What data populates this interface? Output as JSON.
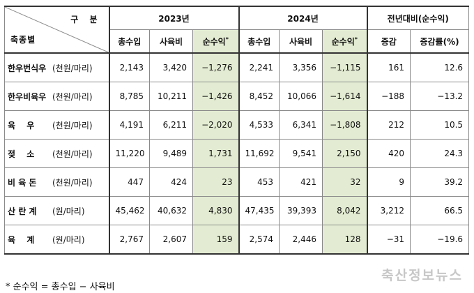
{
  "header": {
    "corner_top": "구 분",
    "corner_bottom": "축종별",
    "year1": "2023년",
    "year2": "2024년",
    "yoy": "전년대비(순수익)",
    "col_income": "총수입",
    "col_cost": "사육비",
    "col_net": "순수익",
    "col_net_mark": "*",
    "col_change": "증감",
    "col_rate": "증감률(%)"
  },
  "rows": [
    {
      "name": "한우번식우",
      "unit": "(천원/마리)",
      "i23": "2,143",
      "c23": "3,420",
      "n23": "−1,276",
      "i24": "2,241",
      "c24": "3,356",
      "n24": "−1,115",
      "chg": "161",
      "rate": "12.6"
    },
    {
      "name": "한우비육우",
      "unit": "(천원/마리)",
      "i23": "8,785",
      "c23": "10,211",
      "n23": "−1,426",
      "i24": "8,452",
      "c24": "10,066",
      "n24": "−1,614",
      "chg": "−188",
      "rate": "−13.2"
    },
    {
      "name": "육　 우",
      "unit": "(천원/마리)",
      "i23": "4,191",
      "c23": "6,211",
      "n23": "−2,020",
      "i24": "4,533",
      "c24": "6,341",
      "n24": "−1,808",
      "chg": "212",
      "rate": "10.5"
    },
    {
      "name": "젖　 소",
      "unit": "(천원/마리)",
      "i23": "11,220",
      "c23": "9,489",
      "n23": "1,731",
      "i24": "11,692",
      "c24": "9,541",
      "n24": "2,150",
      "chg": "420",
      "rate": "24.3"
    },
    {
      "name": "비 육 돈",
      "unit": "(천원/마리)",
      "i23": "447",
      "c23": "424",
      "n23": "23",
      "i24": "453",
      "c24": "421",
      "n24": "32",
      "chg": "9",
      "rate": "39.2"
    },
    {
      "name": "산 란 계",
      "unit": "(원/마리)",
      "i23": "45,462",
      "c23": "40,632",
      "n23": "4,830",
      "i24": "47,435",
      "c24": "39,393",
      "n24": "8,042",
      "chg": "3,212",
      "rate": "66.5"
    },
    {
      "name": "육　 계",
      "unit": "(원/마리)",
      "i23": "2,767",
      "c23": "2,607",
      "n23": "159",
      "i24": "2,574",
      "c24": "2,446",
      "n24": "128",
      "chg": "−31",
      "rate": "−19.6"
    }
  ],
  "footnote": "* 순수익 = 총수입 − 사육비",
  "watermark": "축산정보뉴스",
  "colors": {
    "net_column_bg": "#e3ecd2",
    "rule": "#333333",
    "grid": "#8a8a8a"
  }
}
